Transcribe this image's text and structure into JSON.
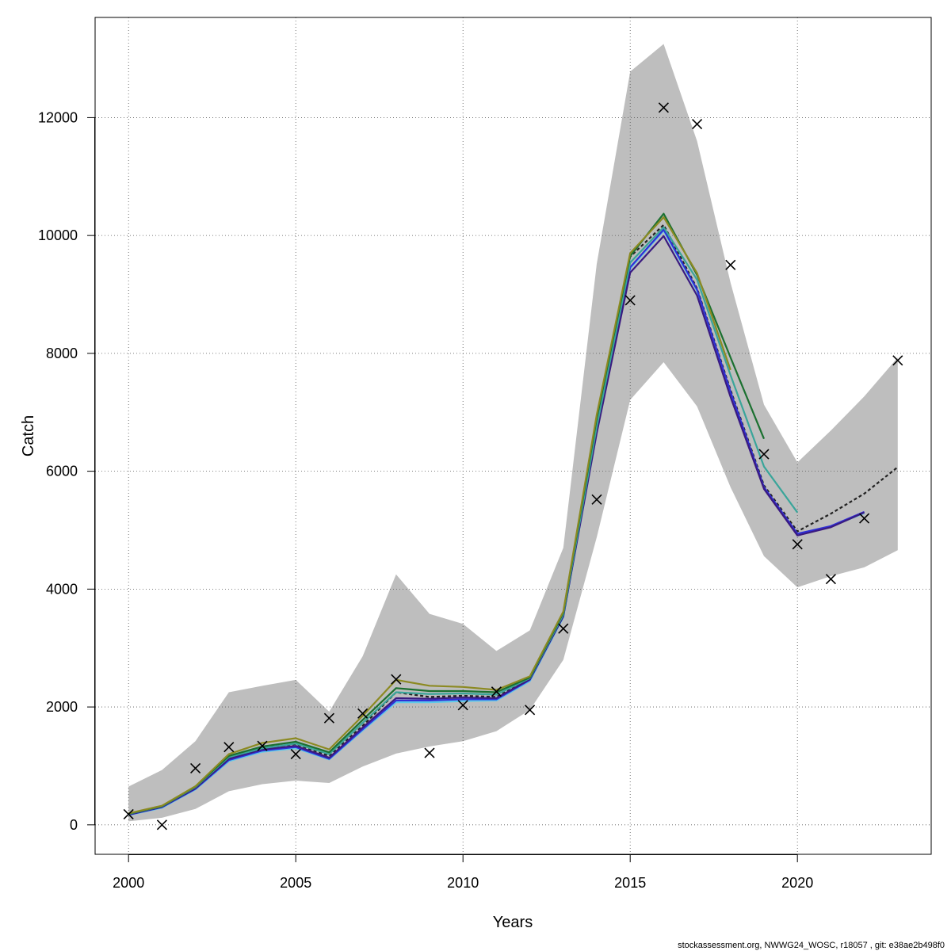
{
  "chart_data": {
    "type": "line",
    "title": "",
    "xlabel": "Years",
    "ylabel": "Catch",
    "xlim": [
      1999,
      2024
    ],
    "ylim": [
      -500,
      13700
    ],
    "xticks": [
      2000,
      2005,
      2010,
      2015,
      2020
    ],
    "yticks": [
      0,
      2000,
      4000,
      6000,
      8000,
      10000,
      12000
    ],
    "grid": true,
    "band_color": "#bebebe",
    "confidence_band": {
      "x": [
        2000,
        2001,
        2002,
        2003,
        2004,
        2005,
        2006,
        2007,
        2008,
        2009,
        2010,
        2011,
        2012,
        2013,
        2014,
        2015,
        2016,
        2017,
        2018,
        2019,
        2020,
        2021,
        2022,
        2023
      ],
      "lower": [
        60,
        120,
        270,
        570,
        690,
        750,
        710,
        990,
        1210,
        1330,
        1420,
        1590,
        1950,
        2800,
        4880,
        7210,
        7850,
        7100,
        5730,
        4560,
        4030,
        4220,
        4370,
        4660
      ],
      "upper": [
        650,
        930,
        1420,
        2250,
        2360,
        2460,
        1920,
        2860,
        4250,
        3580,
        3410,
        2950,
        3300,
        4700,
        9520,
        12780,
        13250,
        11600,
        9200,
        7130,
        6150,
        6690,
        7270,
        7930
      ]
    },
    "observed": {
      "marker": "x",
      "color": "#000000",
      "x": [
        2000,
        2001,
        2002,
        2003,
        2004,
        2005,
        2006,
        2007,
        2008,
        2009,
        2010,
        2011,
        2012,
        2013,
        2014,
        2015,
        2016,
        2017,
        2018,
        2019,
        2020,
        2021,
        2022,
        2023
      ],
      "y": [
        180,
        0,
        960,
        1320,
        1340,
        1200,
        1810,
        1890,
        2470,
        1220,
        2030,
        2260,
        1950,
        3330,
        5520,
        8900,
        12170,
        11890,
        9500,
        6290,
        4760,
        4170,
        5200,
        7880
      ]
    },
    "series": [
      {
        "color": "#222222",
        "dash": "4,3",
        "x": [
          2000,
          2001,
          2002,
          2003,
          2004,
          2005,
          2006,
          2007,
          2008,
          2009,
          2010,
          2011,
          2012,
          2013,
          2014,
          2015,
          2016,
          2017,
          2018,
          2019,
          2020,
          2021,
          2022,
          2023
        ],
        "values": [
          190,
          310,
          630,
          1150,
          1310,
          1370,
          1170,
          1680,
          2250,
          2170,
          2190,
          2170,
          2480,
          3580,
          6770,
          9640,
          10180,
          9100,
          7380,
          5760,
          4980,
          5280,
          5620,
          6070
        ]
      },
      {
        "color": "#5ec8ea",
        "x": [
          2000,
          2001,
          2002,
          2003,
          2004,
          2005,
          2006,
          2007,
          2008,
          2009,
          2010,
          2011,
          2012,
          2013,
          2014,
          2015,
          2016,
          2017,
          2018,
          2019,
          2020,
          2021,
          2022
        ],
        "values": [
          165,
          290,
          600,
          1080,
          1240,
          1300,
          1110,
          1600,
          2080,
          2080,
          2100,
          2110,
          2440,
          3520,
          6650,
          9440,
          10080,
          9060,
          7330,
          5720,
          4930,
          5060,
          5290
        ]
      },
      {
        "color": "#2f2fd6",
        "x": [
          2000,
          2001,
          2002,
          2003,
          2004,
          2005,
          2006,
          2007,
          2008,
          2009,
          2010,
          2011,
          2012,
          2013,
          2014,
          2015,
          2016,
          2017,
          2018,
          2019,
          2020,
          2021,
          2022
        ],
        "values": [
          170,
          300,
          610,
          1100,
          1260,
          1320,
          1120,
          1620,
          2110,
          2110,
          2130,
          2130,
          2460,
          3540,
          6690,
          9460,
          10100,
          9080,
          7350,
          5730,
          4940,
          5070,
          5310
        ]
      },
      {
        "color": "#3a1a80",
        "x": [
          2000,
          2001,
          2002,
          2003,
          2004,
          2005,
          2006,
          2007,
          2008,
          2009,
          2010,
          2011,
          2012,
          2013,
          2014,
          2015,
          2016,
          2017,
          2018,
          2019,
          2020,
          2021,
          2022
        ],
        "values": [
          175,
          305,
          620,
          1120,
          1280,
          1340,
          1140,
          1650,
          2150,
          2140,
          2160,
          2150,
          2470,
          3540,
          6650,
          9370,
          9990,
          8980,
          7260,
          5700,
          4910,
          5050,
          5300
        ]
      },
      {
        "color": "#3aa59a",
        "x": [
          2000,
          2001,
          2002,
          2003,
          2004,
          2005,
          2006,
          2007,
          2008,
          2009,
          2010,
          2011,
          2012,
          2013,
          2014,
          2015,
          2016,
          2017,
          2018,
          2019,
          2020
        ],
        "values": [
          185,
          315,
          640,
          1150,
          1300,
          1380,
          1200,
          1730,
          2250,
          2220,
          2230,
          2210,
          2490,
          3570,
          6760,
          9540,
          10140,
          9250,
          7630,
          6080,
          5300
        ]
      },
      {
        "color": "#1b7030",
        "x": [
          2000,
          2001,
          2002,
          2003,
          2004,
          2005,
          2006,
          2007,
          2008,
          2009,
          2010,
          2011,
          2012,
          2013,
          2014,
          2015,
          2016,
          2017,
          2018,
          2019
        ],
        "values": [
          190,
          320,
          650,
          1170,
          1330,
          1410,
          1230,
          1780,
          2320,
          2270,
          2270,
          2250,
          2500,
          3600,
          6900,
          9650,
          10370,
          9330,
          7930,
          6550
        ]
      },
      {
        "color": "#8c8a22",
        "x": [
          2000,
          2001,
          2002,
          2003,
          2004,
          2005,
          2006,
          2007,
          2008,
          2009,
          2010,
          2011,
          2012,
          2013,
          2014,
          2015,
          2016,
          2017,
          2018
        ],
        "values": [
          195,
          325,
          655,
          1200,
          1390,
          1470,
          1280,
          1850,
          2460,
          2360,
          2340,
          2290,
          2520,
          3620,
          6960,
          9700,
          10310,
          9360,
          7720
        ]
      }
    ]
  },
  "footer": {
    "text": "stockassessment.org, NWWG24_WOSC, r18057 , git: e38ae2b498f0"
  }
}
